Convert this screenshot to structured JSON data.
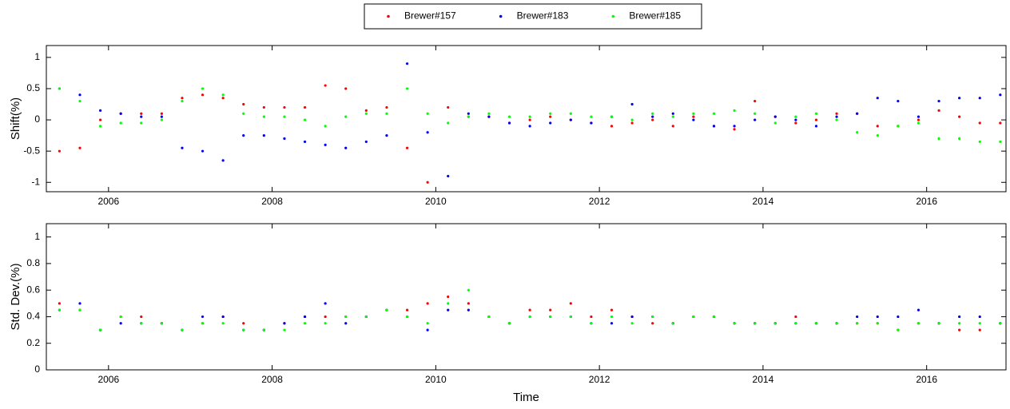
{
  "chart_data": [
    {
      "type": "scatter",
      "ylabel": "Shift(%)",
      "legend": "top",
      "x": [
        2005.4,
        2005.65,
        2005.9,
        2006.15,
        2006.4,
        2006.65,
        2006.9,
        2007.15,
        2007.4,
        2007.65,
        2007.9,
        2008.15,
        2008.4,
        2008.65,
        2008.9,
        2009.15,
        2009.4,
        2009.65,
        2009.9,
        2010.15,
        2010.4,
        2010.65,
        2010.9,
        2011.15,
        2011.4,
        2011.65,
        2011.9,
        2012.15,
        2012.4,
        2012.65,
        2012.9,
        2013.15,
        2013.4,
        2013.65,
        2013.9,
        2014.15,
        2014.4,
        2014.65,
        2014.9,
        2015.15,
        2015.4,
        2015.65,
        2015.9,
        2016.15,
        2016.4,
        2016.65,
        2016.9
      ],
      "series": [
        {
          "name": "Brewer#157",
          "color": "#ff0000",
          "values": [
            -0.5,
            -0.45,
            0,
            0.1,
            0.1,
            0.1,
            0.35,
            0.4,
            0.35,
            0.25,
            0.2,
            0.2,
            0.2,
            0.55,
            0.5,
            0.15,
            0.2,
            -0.45,
            -1.0,
            0.2,
            0.05,
            0.05,
            -0.05,
            0,
            0.05,
            0,
            -0.05,
            -0.1,
            -0.05,
            0,
            -0.1,
            0.05,
            -0.1,
            -0.15,
            0.3,
            0.05,
            -0.05,
            0,
            0.1,
            0.1,
            -0.1,
            -0.1,
            0,
            0.15,
            0.05,
            -0.05,
            -0.05
          ]
        },
        {
          "name": "Brewer#183",
          "color": "#0000ff",
          "values": [
            0.5,
            0.4,
            0.15,
            0.1,
            0.05,
            0.05,
            -0.45,
            -0.5,
            -0.65,
            -0.25,
            -0.25,
            -0.3,
            -0.35,
            -0.4,
            -0.45,
            -0.35,
            -0.25,
            0.9,
            -0.2,
            -0.9,
            0.1,
            0.05,
            -0.05,
            -0.1,
            -0.05,
            0,
            -0.05,
            0.05,
            0.25,
            0.05,
            0.1,
            0,
            -0.1,
            -0.1,
            0,
            0.05,
            0,
            -0.1,
            0.05,
            0.1,
            0.35,
            0.3,
            0.05,
            0.3,
            0.35,
            0.35,
            0.4
          ]
        },
        {
          "name": "Brewer#185",
          "color": "#00ff00",
          "values": [
            0.5,
            0.3,
            -0.1,
            -0.05,
            -0.05,
            0,
            0.3,
            0.5,
            0.4,
            0.1,
            0.05,
            0.05,
            0,
            -0.1,
            0.05,
            0.1,
            0.1,
            0.5,
            0.1,
            -0.05,
            0.05,
            0.1,
            0.05,
            0.05,
            0.1,
            0.1,
            0.05,
            0.05,
            0,
            0.1,
            0.05,
            0.1,
            0.1,
            0.15,
            0.1,
            -0.05,
            0.05,
            0.1,
            0,
            -0.2,
            -0.25,
            -0.1,
            -0.05,
            -0.3,
            -0.3,
            -0.35,
            -0.35
          ]
        }
      ],
      "xlim": [
        2005.24,
        2016.97
      ],
      "xticks": [
        2006,
        2008,
        2010,
        2012,
        2014,
        2016
      ],
      "ylim": [
        -1.15,
        1.19
      ],
      "yticks": [
        -1,
        -0.5,
        0,
        0.5,
        1
      ]
    },
    {
      "type": "scatter",
      "ylabel": "Std. Dev.(%)",
      "xlabel": "Time",
      "x": [
        2005.4,
        2005.65,
        2005.9,
        2006.15,
        2006.4,
        2006.65,
        2006.9,
        2007.15,
        2007.4,
        2007.65,
        2007.9,
        2008.15,
        2008.4,
        2008.65,
        2008.9,
        2009.15,
        2009.4,
        2009.65,
        2009.9,
        2010.15,
        2010.4,
        2010.65,
        2010.9,
        2011.15,
        2011.4,
        2011.65,
        2011.9,
        2012.15,
        2012.4,
        2012.65,
        2012.9,
        2013.15,
        2013.4,
        2013.65,
        2013.9,
        2014.15,
        2014.4,
        2014.65,
        2014.9,
        2015.15,
        2015.4,
        2015.65,
        2015.9,
        2016.15,
        2016.4,
        2016.65,
        2016.9
      ],
      "series": [
        {
          "color": "#ff0000",
          "values": [
            0.5,
            0.45,
            0.3,
            0.4,
            0.4,
            0.35,
            0.3,
            0.35,
            0.4,
            0.35,
            0.3,
            0.35,
            0.4,
            0.4,
            0.4,
            0.4,
            0.45,
            0.45,
            0.5,
            0.55,
            0.5,
            0.4,
            0.35,
            0.45,
            0.45,
            0.5,
            0.4,
            0.45,
            0.4,
            0.35,
            0.35,
            0.4,
            0.4,
            0.35,
            0.35,
            0.35,
            0.4,
            0.35,
            0.35,
            0.35,
            0.35,
            0.3,
            0.35,
            0.35,
            0.3,
            0.3,
            0.35
          ]
        },
        {
          "color": "#0000ff",
          "values": [
            0.45,
            0.5,
            0.3,
            0.35,
            0.35,
            0.35,
            0.3,
            0.4,
            0.4,
            0.3,
            0.3,
            0.35,
            0.4,
            0.5,
            0.35,
            0.4,
            0.45,
            0.4,
            0.3,
            0.45,
            0.45,
            0.4,
            0.35,
            0.4,
            0.4,
            0.4,
            0.35,
            0.35,
            0.4,
            0.4,
            0.35,
            0.4,
            0.4,
            0.35,
            0.35,
            0.35,
            0.35,
            0.35,
            0.35,
            0.4,
            0.4,
            0.4,
            0.45,
            0.35,
            0.4,
            0.4,
            0.35
          ]
        },
        {
          "color": "#00ff00",
          "values": [
            0.45,
            0.45,
            0.3,
            0.4,
            0.35,
            0.35,
            0.3,
            0.35,
            0.35,
            0.3,
            0.3,
            0.3,
            0.35,
            0.35,
            0.4,
            0.4,
            0.45,
            0.4,
            0.35,
            0.5,
            0.6,
            0.4,
            0.35,
            0.4,
            0.4,
            0.4,
            0.35,
            0.4,
            0.35,
            0.4,
            0.35,
            0.4,
            0.4,
            0.35,
            0.35,
            0.35,
            0.35,
            0.35,
            0.35,
            0.35,
            0.35,
            0.3,
            0.35,
            0.35,
            0.35,
            0.35,
            0.35
          ]
        }
      ],
      "xlim": [
        2005.24,
        2016.97
      ],
      "xticks": [
        2006,
        2008,
        2010,
        2012,
        2014,
        2016
      ],
      "ylim": [
        0,
        1.1
      ],
      "yticks": [
        0,
        0.2,
        0.4,
        0.6,
        0.8,
        1
      ]
    }
  ]
}
